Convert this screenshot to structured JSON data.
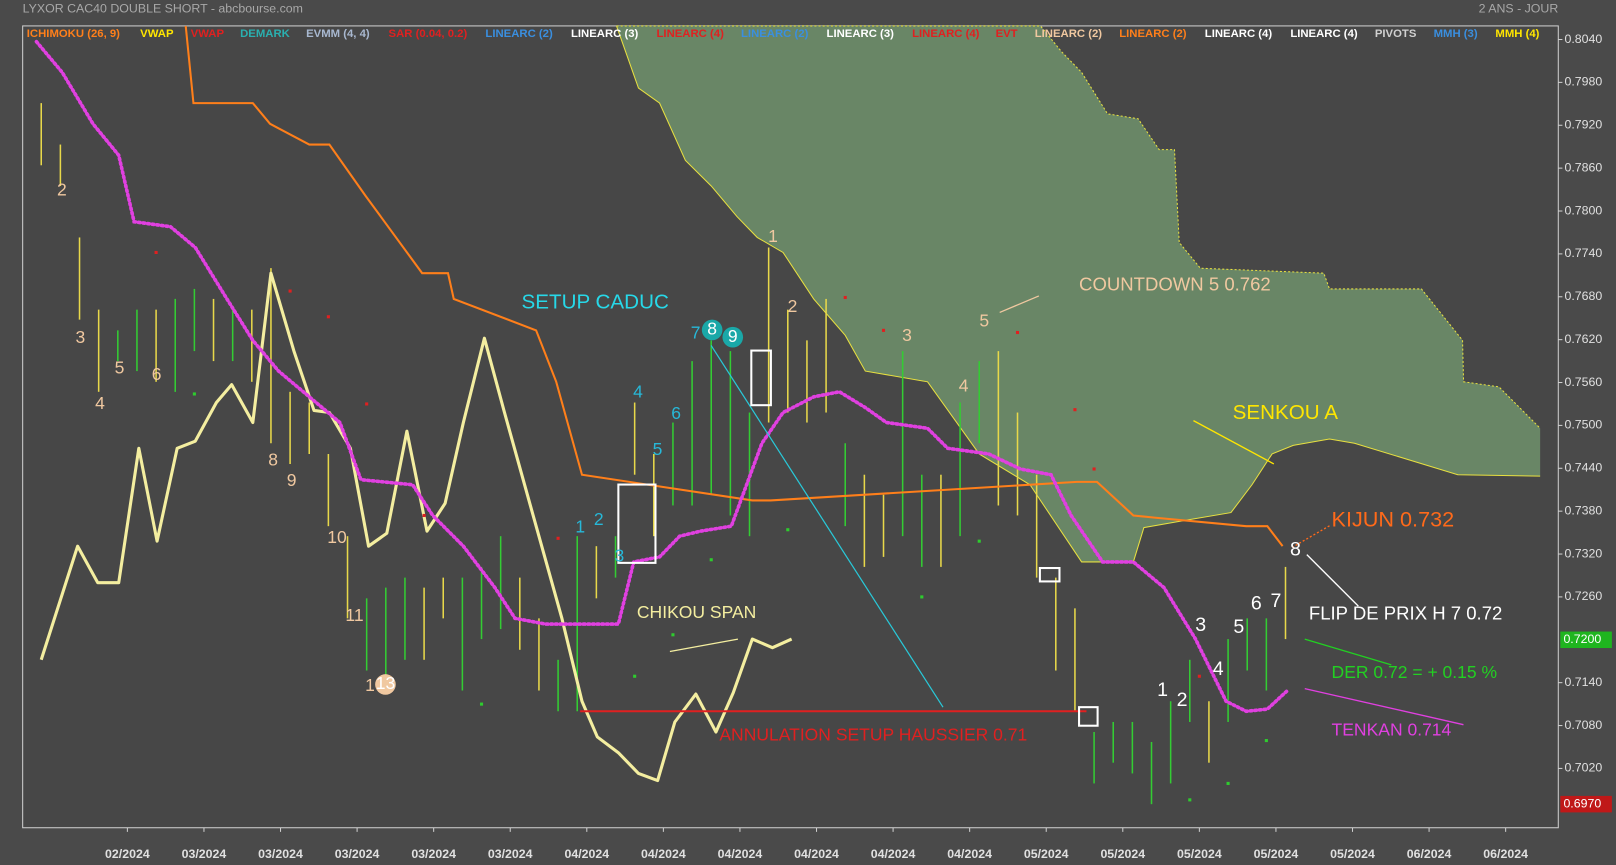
{
  "chart_data": {
    "type": "ohlc",
    "title": "LYXOR CAC40 DOUBLE SHORT - abcbourse.com",
    "timeframe": "2 ANS - JOUR",
    "indicators": [
      {
        "name": "ICHIMOKU (26, 9)",
        "color": "#ff7f1a"
      },
      {
        "name": "VWAP",
        "color": "#ffe600"
      },
      {
        "name": "VWAP",
        "color": "#e02020"
      },
      {
        "name": "DEMARK",
        "color": "#2ab0b0"
      },
      {
        "name": "EVMM (4, 4)",
        "color": "#a8b8d0"
      },
      {
        "name": "SAR (0.04, 0.2)",
        "color": "#e02020"
      },
      {
        "name": "LINEARC (2)",
        "color": "#3a8fe0"
      },
      {
        "name": "LINEARC (3)",
        "color": "#ffffff"
      },
      {
        "name": "LINEARC (4)",
        "color": "#e02020"
      },
      {
        "name": "LINEARC (2)",
        "color": "#3a8fe0"
      },
      {
        "name": "LINEARC (3)",
        "color": "#ffffff"
      },
      {
        "name": "LINEARC (4)",
        "color": "#e02020"
      },
      {
        "name": "EVT",
        "color": "#e02020"
      },
      {
        "name": "LINEARC (2)",
        "color": "#f0c8a0"
      },
      {
        "name": "LINEARC (2)",
        "color": "#ff7f1a"
      },
      {
        "name": "LINEARC (4)",
        "color": "#ffffff"
      },
      {
        "name": "LINEARC (4)",
        "color": "#ffffff"
      },
      {
        "name": "PIVOTS",
        "color": "#d0d0d0"
      },
      {
        "name": "MMH (3)",
        "color": "#3a8fe0"
      },
      {
        "name": "MMH (4)",
        "color": "#ffe600"
      }
    ],
    "xlim": [
      -1.94,
      158.5
    ],
    "xticks": [
      {
        "value": 9,
        "label": "02/2024"
      },
      {
        "value": 17,
        "label": "03/2024"
      },
      {
        "value": 25,
        "label": "03/2024"
      },
      {
        "value": 33,
        "label": "03/2024"
      },
      {
        "value": 41,
        "label": "03/2024"
      },
      {
        "value": 49,
        "label": "03/2024"
      },
      {
        "value": 57,
        "label": "04/2024"
      },
      {
        "value": 65,
        "label": "04/2024"
      },
      {
        "value": 73,
        "label": "04/2024"
      },
      {
        "value": 81,
        "label": "04/2024"
      },
      {
        "value": 89,
        "label": "04/2024"
      },
      {
        "value": 97,
        "label": "04/2024"
      },
      {
        "value": 105,
        "label": "05/2024"
      },
      {
        "value": 113,
        "label": "05/2024"
      },
      {
        "value": 121,
        "label": "05/2024"
      },
      {
        "value": 129,
        "label": "05/2024"
      },
      {
        "value": 137,
        "label": "05/2024"
      },
      {
        "value": 145,
        "label": "06/2024"
      },
      {
        "value": 153,
        "label": "06/2024"
      }
    ],
    "ylim": [
      0.6937,
      0.8059
    ],
    "yticks": [
      {
        "value": 0.702,
        "label": "0.7020"
      },
      {
        "value": 0.708,
        "label": "0.7080"
      },
      {
        "value": 0.714,
        "label": "0.7140"
      },
      {
        "value": 0.726,
        "label": "0.7260"
      },
      {
        "value": 0.732,
        "label": "0.7320"
      },
      {
        "value": 0.738,
        "label": "0.7380"
      },
      {
        "value": 0.744,
        "label": "0.7440"
      },
      {
        "value": 0.75,
        "label": "0.7500"
      },
      {
        "value": 0.756,
        "label": "0.7560"
      },
      {
        "value": 0.762,
        "label": "0.7620"
      },
      {
        "value": 0.768,
        "label": "0.7680"
      },
      {
        "value": 0.774,
        "label": "0.7740"
      },
      {
        "value": 0.78,
        "label": "0.7800"
      },
      {
        "value": 0.786,
        "label": "0.7860"
      },
      {
        "value": 0.792,
        "label": "0.7920"
      },
      {
        "value": 0.798,
        "label": "0.7980"
      },
      {
        "value": 0.804,
        "label": "0.8040"
      }
    ],
    "price_markers": [
      {
        "value": 0.72,
        "label": "0.7200",
        "color": "#1fb51f"
      },
      {
        "value": 0.697,
        "label": "0.6970",
        "color": "#c01818"
      }
    ],
    "bars": {
      "x": [
        0,
        2,
        4,
        6,
        8,
        10,
        12,
        14,
        16,
        18,
        20,
        22,
        24,
        26,
        28,
        30,
        32,
        34,
        36,
        38,
        40,
        42,
        44,
        46,
        48,
        50,
        52,
        54,
        56,
        58,
        60,
        62,
        64,
        66,
        68,
        70,
        72,
        74,
        76,
        78,
        80,
        82,
        84,
        86,
        88,
        90,
        92,
        94,
        96,
        98,
        100,
        102,
        104,
        106,
        108,
        110,
        112,
        114,
        116,
        118,
        120,
        122,
        124,
        126,
        128,
        130
      ],
      "high": [
        0.7951,
        0.7893,
        0.7763,
        0.7662,
        0.7633,
        0.7662,
        0.7662,
        0.7677,
        0.7691,
        0.7677,
        0.7662,
        0.7662,
        0.772,
        0.7547,
        0.7532,
        0.746,
        0.7345,
        0.7258,
        0.7273,
        0.7287,
        0.7273,
        0.7287,
        0.7287,
        0.7302,
        0.7345,
        0.7287,
        0.723,
        0.7172,
        0.7345,
        0.7331,
        0.7345,
        0.7532,
        0.746,
        0.7504,
        0.759,
        0.7619,
        0.7604,
        0.7518,
        0.7749,
        0.7662,
        0.7619,
        0.7677,
        0.7475,
        0.7431,
        0.7403,
        0.7604,
        0.7431,
        0.7431,
        0.7532,
        0.759,
        0.7604,
        0.7518,
        0.7431,
        0.7287,
        0.7244,
        0.7071,
        0.7085,
        0.7085,
        0.7057,
        0.7114,
        0.7172,
        0.7114,
        0.7201,
        0.723,
        0.723,
        0.7302
      ],
      "low": [
        0.7864,
        0.7835,
        0.7648,
        0.7547,
        0.759,
        0.7576,
        0.7561,
        0.7547,
        0.7604,
        0.759,
        0.759,
        0.7561,
        0.7475,
        0.7446,
        0.746,
        0.7359,
        0.723,
        0.7157,
        0.7143,
        0.7172,
        0.7172,
        0.723,
        0.7129,
        0.7201,
        0.7215,
        0.7186,
        0.7129,
        0.71,
        0.71,
        0.7258,
        0.7287,
        0.7431,
        0.7345,
        0.7388,
        0.7388,
        0.7403,
        0.7374,
        0.7345,
        0.7504,
        0.7518,
        0.7504,
        0.7518,
        0.7359,
        0.7302,
        0.7316,
        0.7345,
        0.7302,
        0.7302,
        0.7345,
        0.7475,
        0.7388,
        0.7374,
        0.7287,
        0.7157,
        0.71,
        0.6999,
        0.7028,
        0.7013,
        0.697,
        0.6999,
        0.7085,
        0.7028,
        0.7085,
        0.7157,
        0.7129,
        0.7201
      ],
      "colors": [
        "#e8d84a",
        "#e8d84a",
        "#e8d84a",
        "#e8d84a",
        "#33cc33",
        "#33cc33",
        "#e8d84a",
        "#33cc33",
        "#33cc33",
        "#e8d84a",
        "#33cc33",
        "#e8d84a",
        "#e8d84a",
        "#e8d84a",
        "#e8d84a",
        "#e8d84a",
        "#e8d84a",
        "#33cc33",
        "#33cc33",
        "#33cc33",
        "#e8d84a",
        "#e8d84a",
        "#33cc33",
        "#33cc33",
        "#33cc33",
        "#e8d84a",
        "#e8d84a",
        "#33cc33",
        "#33cc33",
        "#e8d84a",
        "#33cc33",
        "#e8d84a",
        "#e8d84a",
        "#33cc33",
        "#33cc33",
        "#33cc33",
        "#33cc33",
        "#33cc33",
        "#e8d84a",
        "#e8d84a",
        "#e8d84a",
        "#e8d84a",
        "#33cc33",
        "#e8d84a",
        "#e8d84a",
        "#33cc33",
        "#33cc33",
        "#e8d84a",
        "#33cc33",
        "#33cc33",
        "#e8d84a",
        "#e8d84a",
        "#e8d84a",
        "#e8d84a",
        "#e8d84a",
        "#33cc33",
        "#33cc33",
        "#33cc33",
        "#33cc33",
        "#33cc33",
        "#33cc33",
        "#e8d84a",
        "#33cc33",
        "#33cc33",
        "#33cc33",
        "#e8d84a"
      ]
    },
    "senkou_a": {
      "color": "#e8e040",
      "x": [
        60.1,
        62.4,
        64.6,
        67.3,
        70.0,
        72.7,
        74.8,
        77.5,
        80.7,
        84.0,
        86.1,
        92.6,
        98.0,
        103.3,
        108.7,
        114.1,
        115.2,
        119.5,
        124.3,
        126.5,
        128.6,
        130.8,
        134.6,
        137.2,
        148.0,
        156.6
      ],
      "values": [
        0.8059,
        0.7972,
        0.7951,
        0.7871,
        0.7835,
        0.7792,
        0.7763,
        0.7742,
        0.7677,
        0.7626,
        0.7576,
        0.7561,
        0.746,
        0.7417,
        0.7309,
        0.7309,
        0.7357,
        0.7367,
        0.7378,
        0.7417,
        0.746,
        0.7472,
        0.7481,
        0.7475,
        0.7431,
        0.7429
      ]
    },
    "senkou_b": {
      "color": "#e8e040",
      "fill": "#6b8a68",
      "x": [
        60.1,
        104.4,
        106.6,
        108.7,
        111.4,
        114.6,
        116.8,
        118.4,
        118.9,
        121.1,
        134.0,
        134.6,
        144.2,
        148.5,
        148.6,
        152.3,
        156.6
      ],
      "values": [
        0.8059,
        0.8059,
        0.8023,
        0.7994,
        0.7936,
        0.7929,
        0.7886,
        0.7886,
        0.7756,
        0.772,
        0.7713,
        0.7691,
        0.7691,
        0.7619,
        0.7561,
        0.7554,
        0.7496
      ]
    },
    "kijun": {
      "color": "#ff7f1a",
      "x": [
        15.1,
        15.9,
        22.1,
        23.9,
        28.0,
        30.1,
        33.9,
        39.8,
        42.5,
        43.1,
        51.7,
        53.8,
        56.5,
        74.3,
        76.2,
        108.2,
        110.3,
        114.1,
        116.3,
        125.9,
        128.1,
        129.7
      ],
      "values": [
        0.8059,
        0.7951,
        0.7951,
        0.7922,
        0.7893,
        0.7893,
        0.7821,
        0.7713,
        0.7713,
        0.7677,
        0.7633,
        0.7561,
        0.7431,
        0.7395,
        0.7395,
        0.7421,
        0.7421,
        0.7374,
        0.7371,
        0.7359,
        0.7359,
        0.7331
      ]
    },
    "tenkan": {
      "color": "#e040e0",
      "x": [
        -0.5,
        2.2,
        5.4,
        8.1,
        9.7,
        13.5,
        16.1,
        19.4,
        22.1,
        24.8,
        28.0,
        31.2,
        33.4,
        38.8,
        40.9,
        44.1,
        47.4,
        49.5,
        52.7,
        60.3,
        61.9,
        64.6,
        66.7,
        68.9,
        72.1,
        75.3,
        77.5,
        80.7,
        83.4,
        86.1,
        88.3,
        92.6,
        94.7,
        99.0,
        102.3,
        105.5,
        107.6,
        110.9,
        114.1,
        117.3,
        120.6,
        123.8,
        125.9,
        128.1,
        130.2
      ],
      "values": [
        0.8037,
        0.7994,
        0.7922,
        0.7878,
        0.7785,
        0.7778,
        0.7749,
        0.7677,
        0.7619,
        0.7576,
        0.754,
        0.7504,
        0.7424,
        0.7417,
        0.7374,
        0.7331,
        0.7273,
        0.723,
        0.7222,
        0.7222,
        0.7309,
        0.7316,
        0.7345,
        0.7352,
        0.7359,
        0.7475,
        0.7518,
        0.754,
        0.7547,
        0.7525,
        0.7504,
        0.7496,
        0.7468,
        0.746,
        0.7439,
        0.7431,
        0.7374,
        0.7309,
        0.7309,
        0.7273,
        0.7201,
        0.7114,
        0.71,
        0.7103,
        0.7129
      ]
    },
    "chikou": {
      "color": "#f4eea0",
      "x": [
        0,
        3.8,
        5.9,
        8.1,
        10.2,
        12.1,
        14.2,
        16.1,
        18.3,
        19.9,
        22.1,
        24.0,
        26.4,
        28.5,
        30.1,
        32.3,
        34.2,
        36.1,
        38.2,
        40.3,
        42.2,
        44.1,
        46.3,
        48.4,
        51.1,
        54.4,
        56.5,
        58.1,
        60.3,
        62.4,
        64.4,
        66.2,
        68.4,
        70.5,
        72.3,
        74.3,
        76.4,
        78.4
      ],
      "values": [
        0.7172,
        0.7331,
        0.728,
        0.728,
        0.7468,
        0.7338,
        0.7468,
        0.7478,
        0.7532,
        0.7557,
        0.7504,
        0.7713,
        0.7604,
        0.7521,
        0.7518,
        0.7468,
        0.7331,
        0.7349,
        0.7492,
        0.7352,
        0.7391,
        0.7504,
        0.7622,
        0.7518,
        0.7388,
        0.723,
        0.7114,
        0.7064,
        0.7042,
        0.7013,
        0.7003,
        0.7085,
        0.7124,
        0.7071,
        0.7126,
        0.7201,
        0.7189,
        0.7201
      ]
    },
    "sar_above": {
      "color": "#e02020",
      "x": [
        12,
        26,
        30,
        34,
        40,
        54,
        84,
        88,
        102,
        108,
        110,
        121
      ],
      "values": [
        0.7742,
        0.7688,
        0.7652,
        0.753,
        0.7374,
        0.7342,
        0.7679,
        0.7633,
        0.763,
        0.7522,
        0.7439,
        0.7149
      ]
    },
    "sar_below": {
      "color": "#2ecc2e",
      "x": [
        16,
        46,
        62,
        66,
        70,
        78,
        92,
        98,
        120,
        124,
        128
      ],
      "values": [
        0.7544,
        0.711,
        0.7149,
        0.7207,
        0.7312,
        0.7354,
        0.726,
        0.7338,
        0.6976,
        0.6999,
        0.7059
      ]
    },
    "cancel_level": {
      "color": "#e02020",
      "x": [
        56.3,
        109.2
      ],
      "values": [
        0.71,
        0.71
      ]
    },
    "counts": {
      "early": [
        "2",
        "3",
        "5",
        "4",
        "6",
        "8",
        "9",
        "10",
        "11",
        "1",
        "13"
      ],
      "cyan": [
        "1",
        "2",
        "3",
        "4",
        "5",
        "6",
        "7",
        "8",
        "9"
      ],
      "upper": [
        "1",
        "2",
        "3",
        "4",
        "5"
      ],
      "white": [
        "1",
        "2",
        "3",
        "4",
        "5",
        "6",
        "7",
        "8"
      ]
    },
    "annotations": {
      "setup_caduc": "SETUP CADUC",
      "countdown": "COUNTDOWN 5 0.762",
      "senkou_a": "SENKOU A",
      "kijun": "KIJUN 0.732",
      "flip": "FLIP DE PRIX H 7 0.72",
      "der": "DER 0.72 = + 0.15 %",
      "tenkan": "TENKAN 0.714",
      "chikou": "CHIKOU SPAN",
      "annulation": "ANNULATION SETUP HAUSSIER 0.71"
    }
  }
}
